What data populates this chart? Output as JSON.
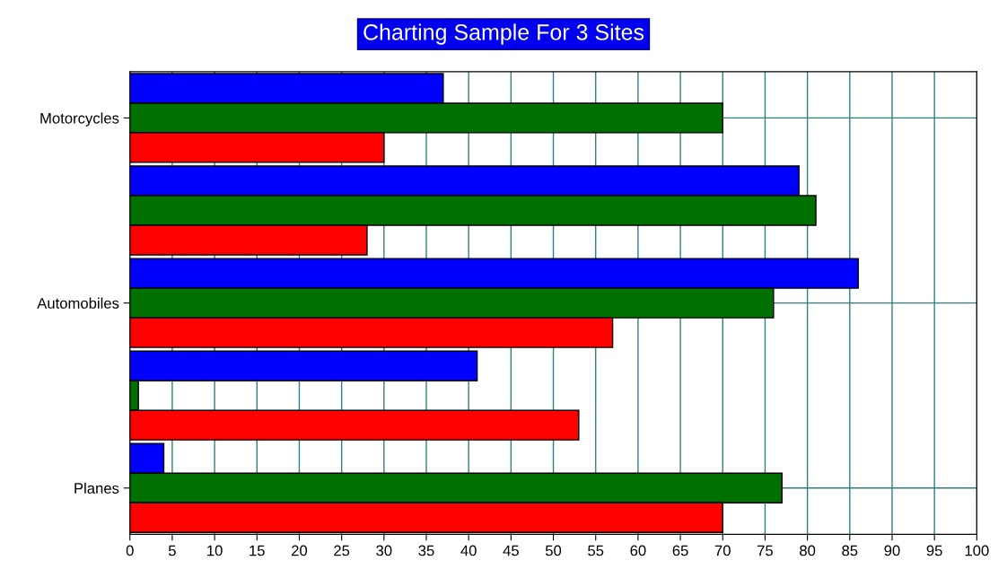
{
  "chart_data": {
    "type": "bar",
    "orientation": "horizontal",
    "title": "Charting Sample For 3 Sites",
    "categories": [
      "Motorcycles",
      null,
      "Automobiles",
      null,
      "Planes"
    ],
    "series": [
      {
        "color": "#0000ff",
        "values": [
          37,
          79,
          86,
          41,
          4
        ]
      },
      {
        "color": "#007000",
        "values": [
          70,
          81,
          76,
          1,
          77
        ]
      },
      {
        "color": "#ff0000",
        "values": [
          30,
          28,
          57,
          53,
          70
        ]
      }
    ],
    "xlim": [
      0,
      100
    ],
    "xticks": [
      0,
      5,
      10,
      15,
      20,
      25,
      30,
      35,
      40,
      45,
      50,
      55,
      60,
      65,
      70,
      75,
      80,
      85,
      90,
      95,
      100
    ],
    "grid": true,
    "legend": false
  }
}
